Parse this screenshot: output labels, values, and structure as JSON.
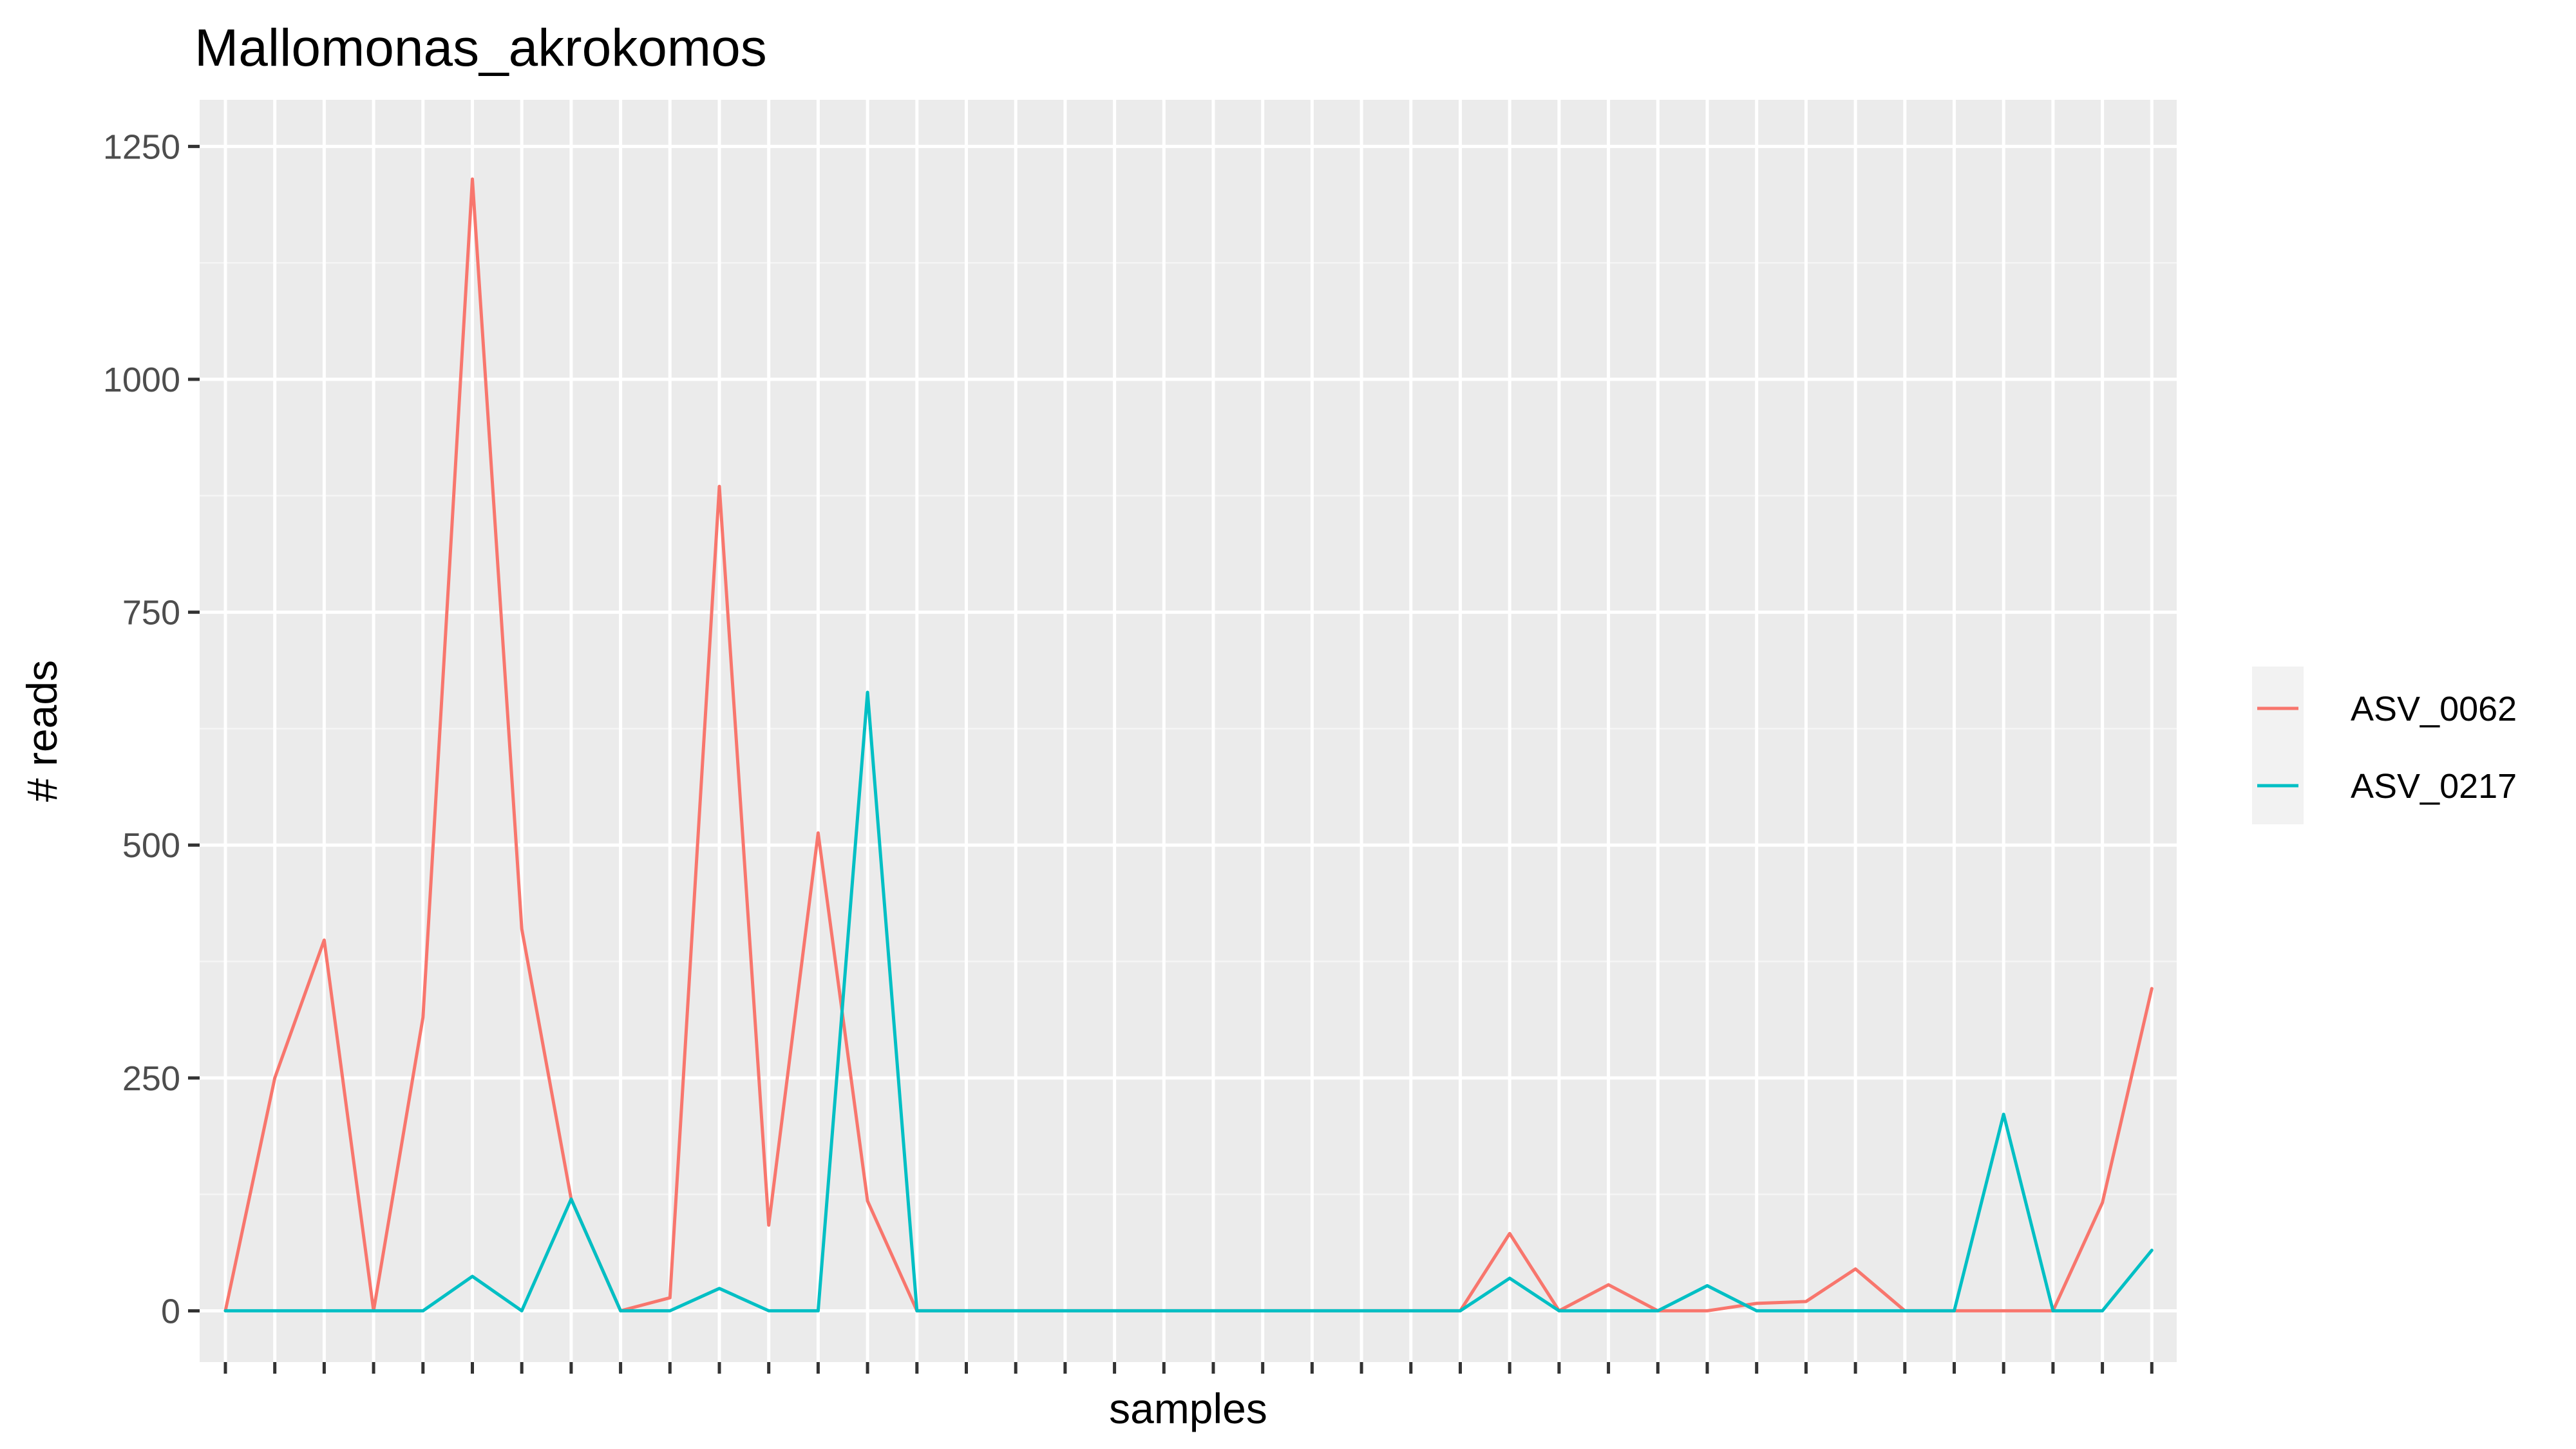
{
  "chart_data": {
    "type": "line",
    "title": "Mallomonas_akrokomos",
    "xlabel": "samples",
    "ylabel": "# reads",
    "ylim": [
      -55,
      1300
    ],
    "yticks": [
      0,
      250,
      500,
      750,
      1000,
      1250
    ],
    "ytick_labels": [
      "0",
      "250",
      "500",
      "750",
      "1000",
      "1250"
    ],
    "n_samples": 40,
    "grid": true,
    "legend_position": "right",
    "series": [
      {
        "name": "ASV_0062",
        "color": "#F8766D",
        "values": [
          0,
          250,
          398,
          0,
          315,
          1215,
          410,
          120,
          0,
          14,
          885,
          92,
          513,
          118,
          0,
          0,
          0,
          0,
          0,
          0,
          0,
          0,
          0,
          0,
          0,
          0,
          83,
          0,
          28,
          0,
          0,
          8,
          10,
          45,
          0,
          0,
          0,
          0,
          116,
          346
        ]
      },
      {
        "name": "ASV_0217",
        "color": "#00BFC4",
        "values": [
          0,
          0,
          0,
          0,
          0,
          37,
          0,
          120,
          0,
          0,
          24,
          0,
          0,
          664,
          0,
          0,
          0,
          0,
          0,
          0,
          0,
          0,
          0,
          0,
          0,
          0,
          35,
          0,
          0,
          0,
          27,
          0,
          0,
          0,
          0,
          0,
          211,
          0,
          0,
          65
        ]
      }
    ]
  }
}
